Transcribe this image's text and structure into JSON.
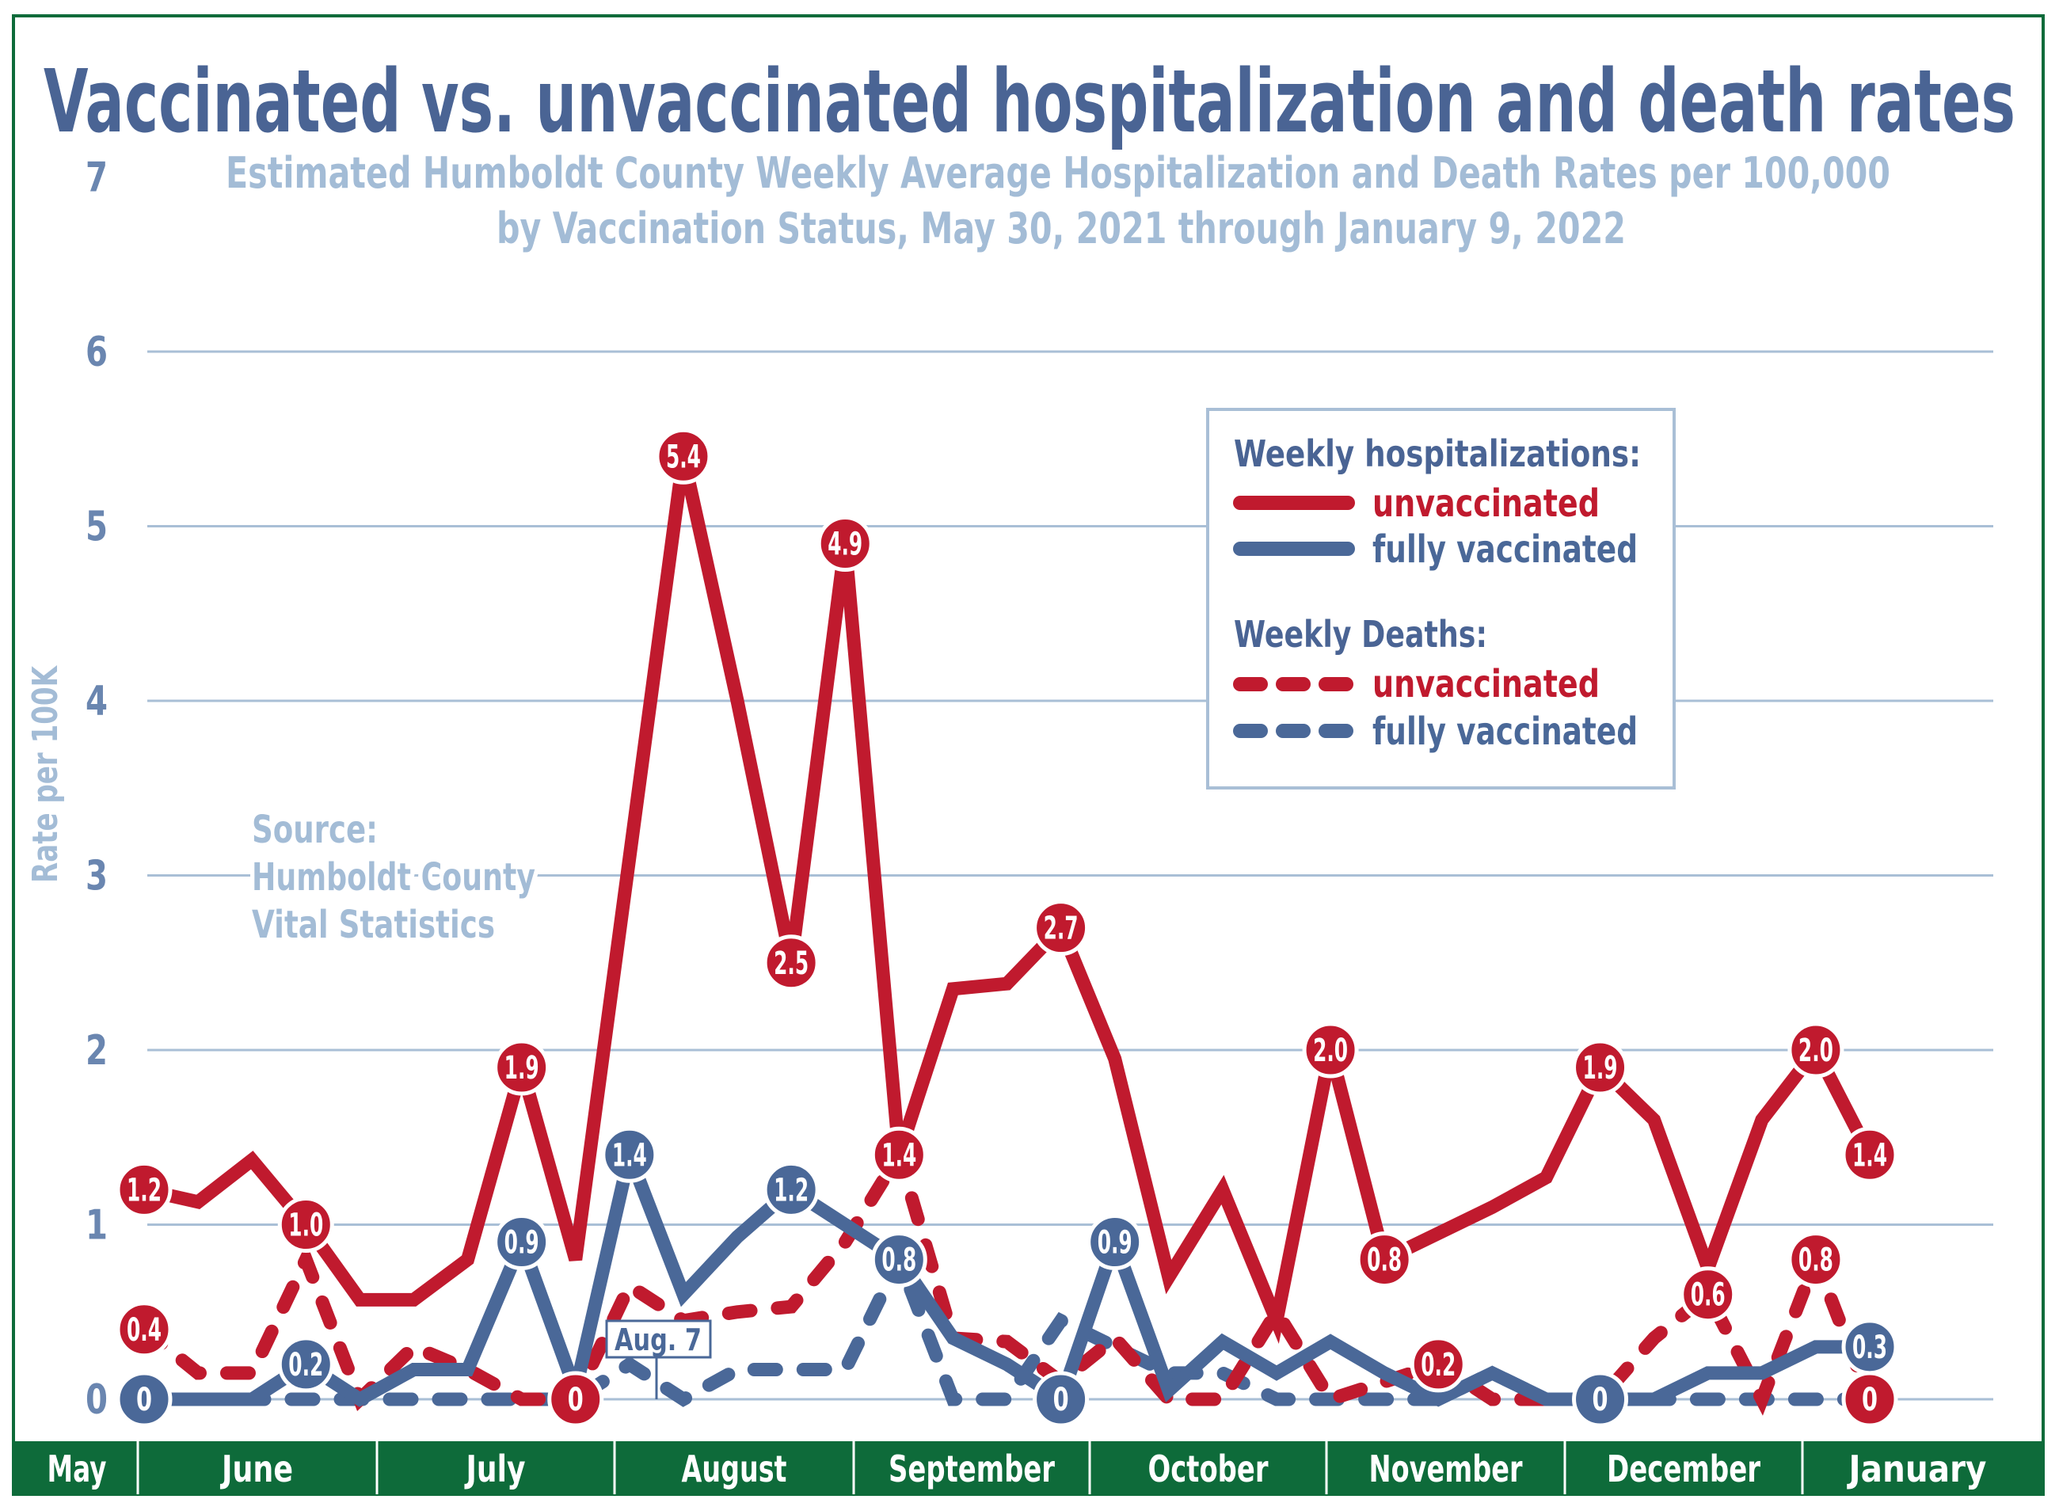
{
  "colors": {
    "unvaccinated": "#c01a2e",
    "vaccinated": "#4a6898",
    "title": "#4a6494",
    "subtitle": "#a3bcd6",
    "grid": "#a9bfd6",
    "month_bar": "#0e6b3a"
  },
  "chart_data": {
    "type": "line",
    "title": "Vaccinated vs. unvaccinated hospitalization and death rates",
    "subtitle": [
      "Estimated Humboldt County Weekly Average Hospitalization and Death Rates per 100,000",
      "by Vaccination Status,  May 30, 2021 through January 9, 2022"
    ],
    "ylabel": "Rate per 100K",
    "ylim": [
      0,
      7
    ],
    "y_ticks": [
      "0",
      "1",
      "2",
      "3",
      "4",
      "5",
      "6",
      "7"
    ],
    "grid": true,
    "x_months": [
      "May",
      "June",
      "July",
      "August",
      "September",
      "October",
      "November",
      "December",
      "January"
    ],
    "x": [
      "2021-05-30",
      "2021-06-06",
      "2021-06-13",
      "2021-06-20",
      "2021-06-27",
      "2021-07-04",
      "2021-07-11",
      "2021-07-18",
      "2021-07-25",
      "2021-08-01",
      "2021-08-08",
      "2021-08-15",
      "2021-08-22",
      "2021-08-29",
      "2021-09-05",
      "2021-09-12",
      "2021-09-19",
      "2021-09-26",
      "2021-10-03",
      "2021-10-10",
      "2021-10-17",
      "2021-10-24",
      "2021-10-31",
      "2021-11-07",
      "2021-11-14",
      "2021-11-21",
      "2021-11-28",
      "2021-12-05",
      "2021-12-12",
      "2021-12-19",
      "2021-12-26",
      "2022-01-02",
      "2022-01-09"
    ],
    "legend": {
      "placement": "top-right",
      "hosp_heading": "Weekly hospitalizations:",
      "deaths_heading": "Weekly Deaths:",
      "unvaccinated": "unvaccinated",
      "vaccinated": "fully vaccinated"
    },
    "series": [
      {
        "group": "Weekly hospitalizations",
        "name": "unvaccinated",
        "style": "solid",
        "color": "#c01a2e",
        "values": [
          1.2,
          1.13,
          1.37,
          1.0,
          0.57,
          0.57,
          0.8,
          1.9,
          0.8,
          3.1,
          5.4,
          4.0,
          2.5,
          4.9,
          1.4,
          2.35,
          2.38,
          2.7,
          1.95,
          0.7,
          1.2,
          0.45,
          2.0,
          0.8,
          0.95,
          1.1,
          1.27,
          1.9,
          1.6,
          0.75,
          1.6,
          2.0,
          1.4
        ],
        "labels": {
          "0": "1.2",
          "3": "1.0",
          "7": "1.9",
          "10": "5.4",
          "12": "2.5",
          "13": "4.9",
          "14": "1.4",
          "17": "2.7",
          "22": "2.0",
          "23": "0.8",
          "27": "1.9",
          "31": "2.0",
          "32": "1.4"
        }
      },
      {
        "group": "Weekly hospitalizations",
        "name": "fully vaccinated",
        "style": "solid",
        "color": "#4a6898",
        "values": [
          0,
          0,
          0,
          0.2,
          0,
          0.17,
          0.17,
          0.9,
          0.05,
          1.4,
          0.6,
          0.93,
          1.2,
          1.0,
          0.8,
          0.35,
          0.2,
          0,
          0.9,
          0.05,
          0.33,
          0.15,
          0.33,
          0.15,
          0,
          0.15,
          0,
          0,
          0,
          0.15,
          0.15,
          0.3,
          0.3
        ],
        "labels": {
          "0": "0",
          "3": "0.2",
          "7": "0.9",
          "9": "1.4",
          "12": "1.2",
          "14": "0.8",
          "17": "0",
          "18": "0.9",
          "27": "0",
          "32": "0.3"
        }
      },
      {
        "group": "Weekly Deaths",
        "name": "unvaccinated",
        "style": "dashed",
        "color": "#c01a2e",
        "values": [
          0.4,
          0.15,
          0.15,
          0.8,
          0,
          0.3,
          0.17,
          0,
          0,
          0.65,
          0.45,
          0.5,
          0.53,
          0.9,
          1.4,
          0.35,
          0.33,
          0.1,
          0.35,
          0,
          0,
          0.5,
          0,
          0.1,
          0.2,
          0,
          0,
          0,
          0.35,
          0.6,
          0,
          0.8,
          0
        ],
        "labels": {
          "0": "0.4",
          "8": "0",
          "24": "0.2",
          "29": "0.6",
          "31": "0.8",
          "32": "0"
        }
      },
      {
        "group": "Weekly Deaths",
        "name": "fully vaccinated",
        "style": "dashed",
        "color": "#4a6898",
        "values": [
          0,
          0,
          0,
          0,
          0,
          0,
          0,
          0,
          0,
          0.2,
          0,
          0.17,
          0.17,
          0.17,
          0.8,
          0,
          0,
          0.45,
          0.3,
          0.15,
          0.15,
          0,
          0,
          0,
          0,
          0.15,
          0,
          0,
          0,
          0,
          0,
          0,
          0
        ],
        "labels": {}
      }
    ],
    "annotation": "Aug. 7",
    "source": [
      "Source:",
      "Humboldt County",
      "Vital Statistics"
    ]
  }
}
